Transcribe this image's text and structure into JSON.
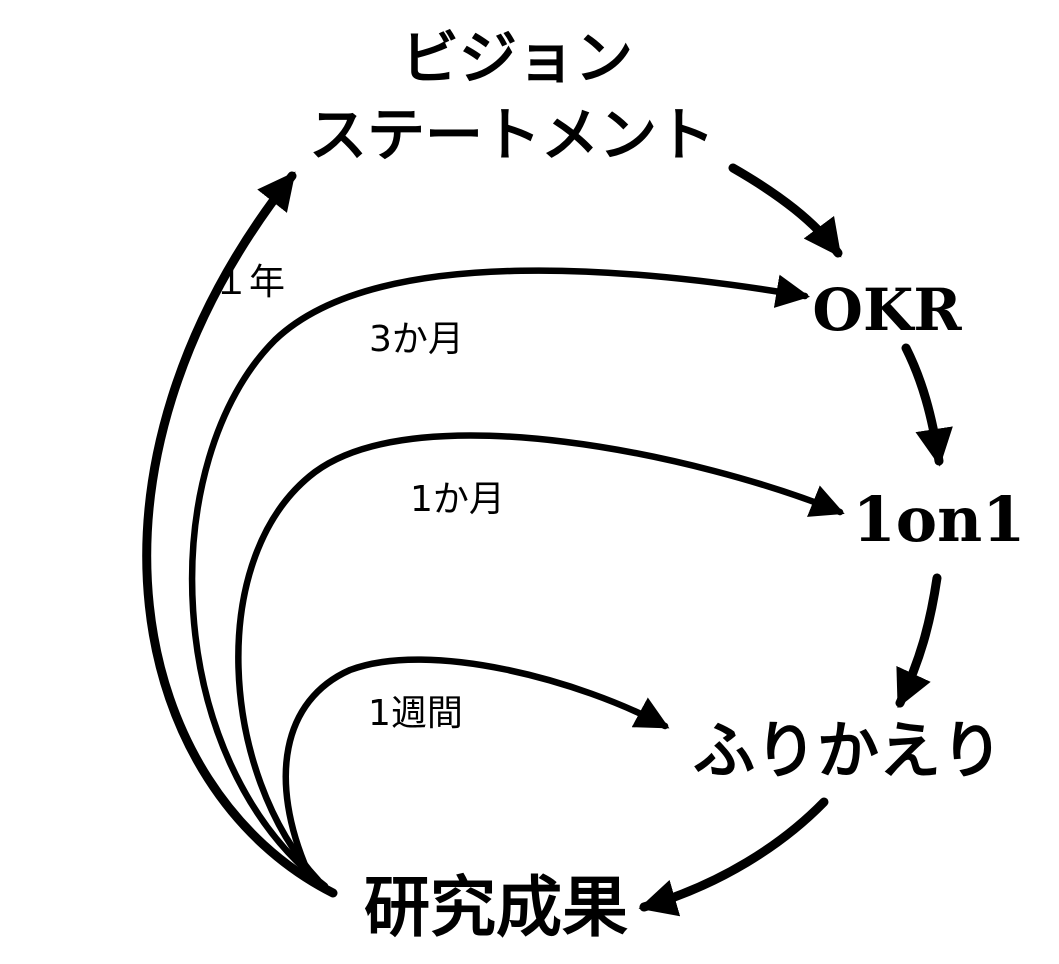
{
  "nodes": {
    "vision_line1": "ビジョン",
    "vision_line2": "ステートメント",
    "okr": "OKR",
    "one_on_one": "1on1",
    "furikaeri": "ふりかえり",
    "seika": "研究成果"
  },
  "cadences": {
    "year": "１年",
    "three_months": "3か月",
    "one_month": "1か月",
    "one_week": "1週間"
  },
  "colors": {
    "ink": "#000000",
    "background": "#ffffff"
  }
}
